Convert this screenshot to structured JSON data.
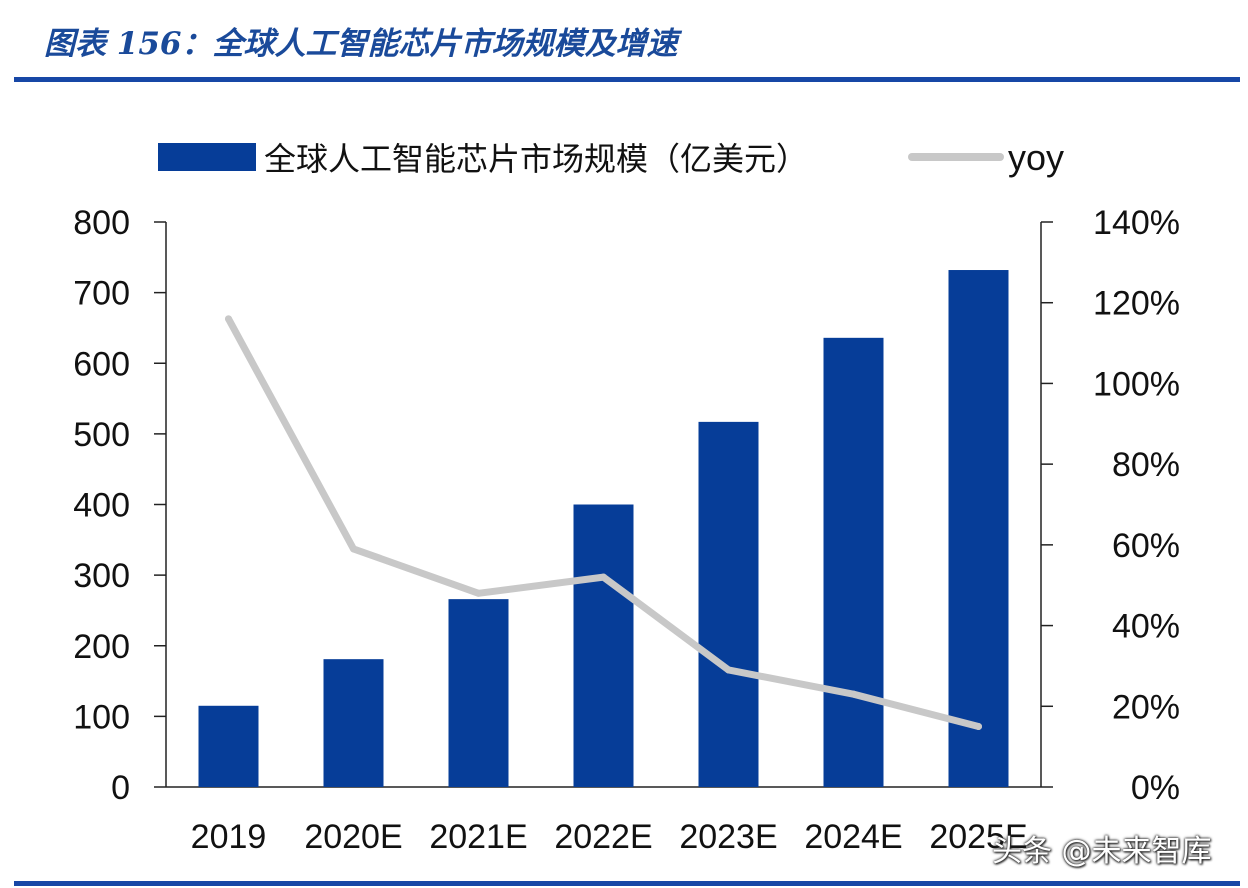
{
  "figure_title": "图表 156：全球人工智能芯片市场规模及增速",
  "watermark": "头条 @未来智库",
  "colors": {
    "bar": "#063d98",
    "line": "#c8c8c8",
    "rule": "#1747a6",
    "title": "#1a4a9a"
  },
  "chart_data": {
    "type": "bar",
    "categories": [
      "2019",
      "2020E",
      "2021E",
      "2022E",
      "2023E",
      "2024E",
      "2025E"
    ],
    "series": [
      {
        "name": "全球人工智能芯片市场规模（亿美元）",
        "type": "bar",
        "axis": "left",
        "values": [
          115,
          181,
          266,
          400,
          517,
          636,
          732
        ]
      },
      {
        "name": "yoy",
        "type": "line",
        "axis": "right",
        "values": [
          1.16,
          0.59,
          0.48,
          0.52,
          0.29,
          0.23,
          0.15
        ]
      }
    ],
    "y_left": {
      "ylim": [
        0,
        800
      ],
      "ticks": [
        "0",
        "100",
        "200",
        "300",
        "400",
        "500",
        "600",
        "700",
        "800"
      ]
    },
    "y_right": {
      "ylim": [
        0,
        1.4
      ],
      "ticks": [
        "0%",
        "20%",
        "40%",
        "60%",
        "80%",
        "100%",
        "120%",
        "140%"
      ]
    },
    "legend": "top",
    "grid": false
  }
}
